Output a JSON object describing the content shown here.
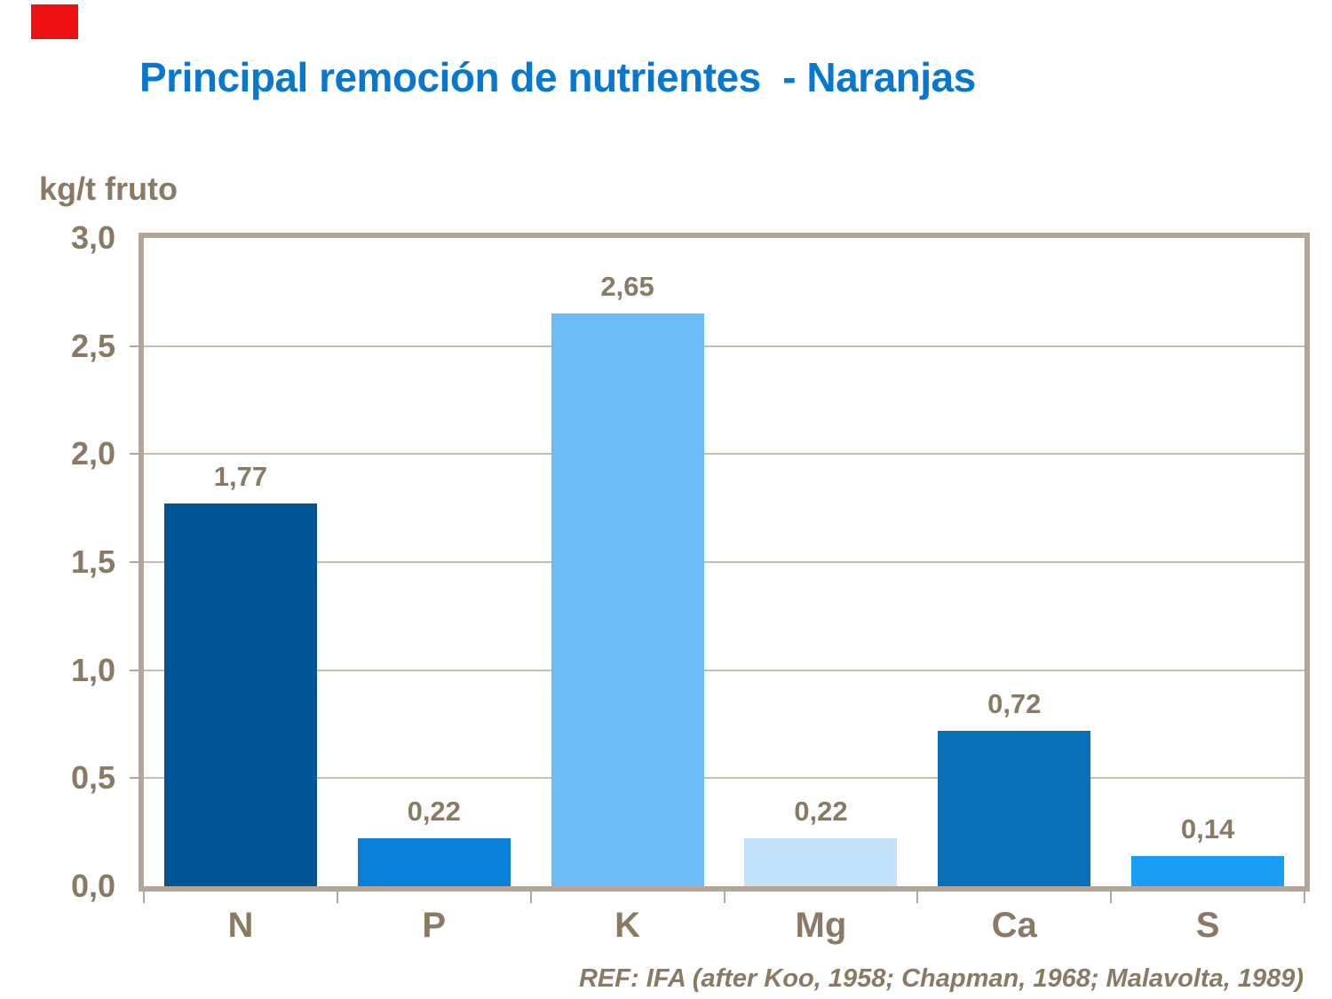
{
  "theme": {
    "background": "#ffffff",
    "red_block_color": "#ee1111",
    "title_color": "#0878ce",
    "axis_text_color": "#8a7963",
    "frame_color": "#b3a698",
    "gridline_color": "#c8bcae"
  },
  "chart_data": {
    "type": "bar",
    "title": "Principal remoción de nutrientes  - Naranjas",
    "ylabel": "kg/t fruto",
    "categories": [
      "N",
      "P",
      "K",
      "Mg",
      "Ca",
      "S"
    ],
    "values": [
      1.77,
      0.22,
      2.65,
      0.22,
      0.72,
      0.14
    ],
    "value_labels": [
      "1,77",
      "0,22",
      "2,65",
      "0,22",
      "0,72",
      "0,14"
    ],
    "bar_colors": [
      "#005596",
      "#0980d8",
      "#6abcf7",
      "#c3e1f9",
      "#0870b8",
      "#189df4"
    ],
    "ylim": [
      0,
      3.0
    ],
    "yticks": [
      {
        "label": "3,0",
        "value": 3.0
      },
      {
        "label": "2,5",
        "value": 2.5
      },
      {
        "label": "2,0",
        "value": 2.0
      },
      {
        "label": "1,5",
        "value": 1.5
      },
      {
        "label": "1,0",
        "value": 1.0
      },
      {
        "label": "0,5",
        "value": 0.5
      },
      {
        "label": "0,0",
        "value": 0.0
      }
    ],
    "gridline_values": [
      0.5,
      1.0,
      1.5,
      2.0,
      2.5
    ],
    "grid": true,
    "legend": "none",
    "source": "REF: IFA (after Koo, 1958; Chapman, 1968; Malavolta, 1989)"
  }
}
